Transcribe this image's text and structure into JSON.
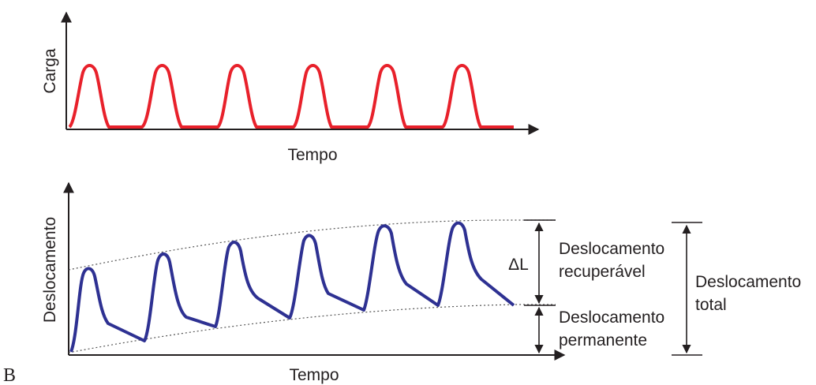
{
  "figure": {
    "panel_label": "B",
    "top_chart": {
      "y_axis_label": "Carga",
      "x_axis_label": "Tempo"
    },
    "bottom_chart": {
      "y_axis_label": "Deslocamento",
      "x_axis_label": "Tempo"
    },
    "annotations": {
      "delta_label": "ΔL",
      "recoverable": [
        "Deslocamento",
        "recuperável"
      ],
      "permanent": [
        "Deslocamento",
        "permanente"
      ],
      "total": [
        "Deslocamento",
        "total"
      ]
    },
    "colors": {
      "load_curve": "#e8212b",
      "displacement_curve": "#2e3192",
      "axes": "#231f20"
    }
  }
}
